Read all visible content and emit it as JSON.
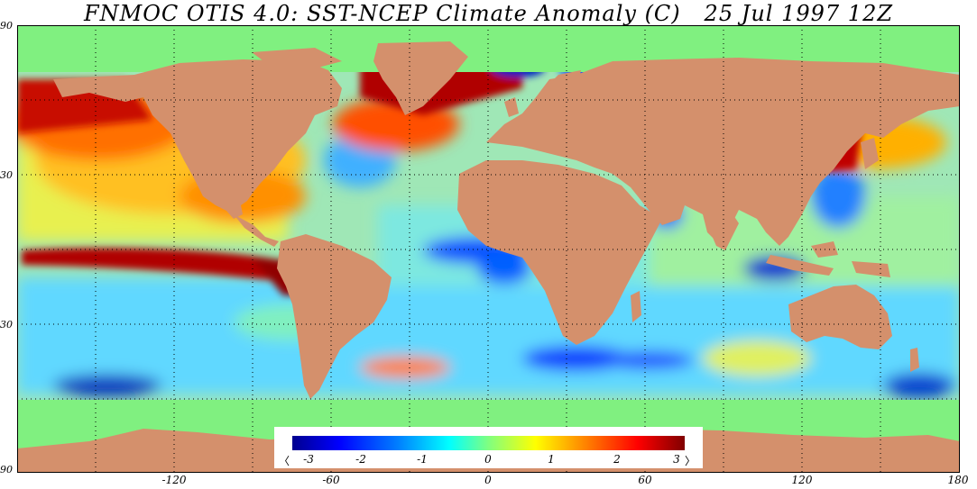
{
  "title": "FNMOC OTIS 4.0: SST-NCEP Climate Anomaly (C)   25 Jul 1997 12Z",
  "map": {
    "projection": "cylindrical-equidistant",
    "lon_range": [
      -180,
      180
    ],
    "lat_range": [
      -90,
      90
    ],
    "land_color": "#d4906c",
    "no_data_color": "#80f080",
    "graticule": "dotted"
  },
  "lat_labels": [
    "90",
    "30",
    "30",
    "90"
  ],
  "lon_labels": [
    "-120",
    "-60",
    "0",
    "60",
    "120",
    "180"
  ],
  "colorbar": {
    "ticks": [
      "-3",
      "-2",
      "-1",
      "0",
      "1",
      "2",
      "3"
    ],
    "left_arrow": "〈",
    "right_arrow": "〉",
    "colors": [
      "#00008f",
      "#0000ff",
      "#0080ff",
      "#00ffff",
      "#80ff80",
      "#ffff00",
      "#ff8000",
      "#ff0000",
      "#800000"
    ]
  }
}
